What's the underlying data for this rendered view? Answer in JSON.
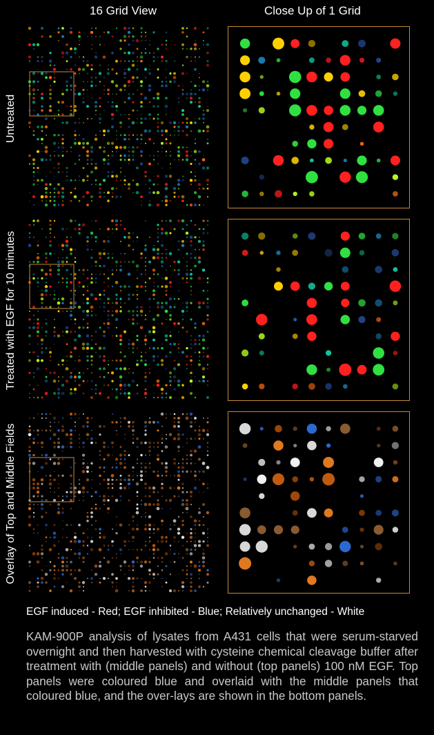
{
  "headers": {
    "left": "16 Grid View",
    "right": "Close Up of 1 Grid"
  },
  "rows": [
    {
      "label": "Untreated",
      "scheme": "heat"
    },
    {
      "label": "Treated with EGF for 10 minutes",
      "scheme": "heat"
    },
    {
      "label": "Overlay of Top and Middle Fields",
      "scheme": "overlay"
    }
  ],
  "legend": "EGF induced - Red; EGF inhibited - Blue; Relatively unchanged - White",
  "caption": "KAM-900P analysis of lysates from A431 cells that were serum-starved overnight and then harvested with cysteine chemical cleavage buffer after treatment with (middle panels) and without (top panels) 100 nM EGF. Top panels were coloured blue and overlaid with the middle panels that coloured blue, and the over-lays are shown in the bottom panels.",
  "colors": {
    "frame": "#c88a3a",
    "caption": "#c9c9c9"
  }
}
